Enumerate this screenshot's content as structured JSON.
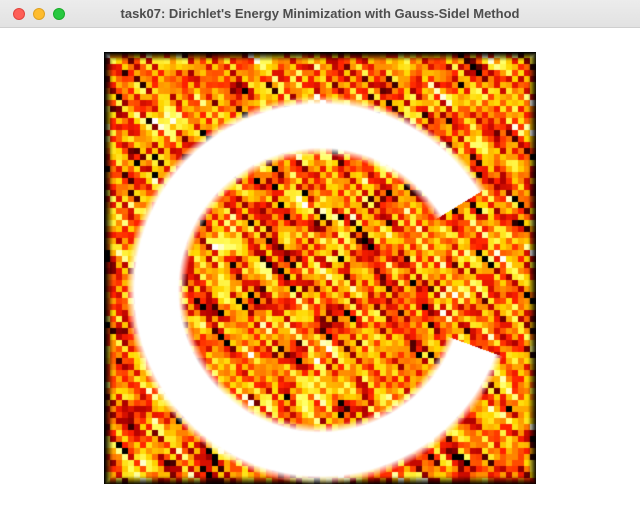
{
  "window": {
    "title": "task07: Dirichlet's Energy Minimization with Gauss-Sidel Method"
  },
  "titlebar_buttons": {
    "close": "close-icon",
    "minimize": "minimize-icon",
    "zoom": "zoom-icon"
  },
  "colors": {
    "close": "#fe5f57",
    "minimize": "#febc2e",
    "zoom": "#28c840",
    "colormap": [
      "#000000",
      "#b00000",
      "#ff2000",
      "#ff8a00",
      "#ffd800",
      "#ffff60",
      "#ffffff"
    ]
  },
  "visualization": {
    "type": "heatmap",
    "description_shown": false
  }
}
